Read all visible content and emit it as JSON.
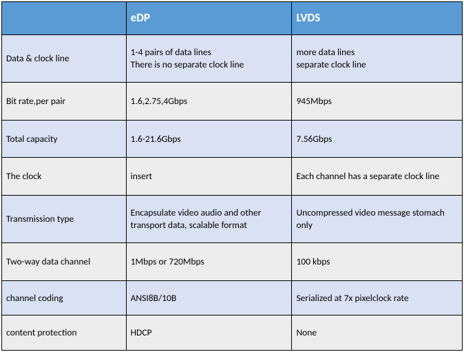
{
  "table": {
    "header_bg": "#5b9bd5",
    "header_fg": "#ffffff",
    "band_even_bg": "#d9e1f2",
    "band_odd_bg": "#ededed",
    "border_color": "#000000",
    "header_fontsize": 17,
    "cell_fontsize": 13.5,
    "columns": [
      "",
      "eDP",
      "LVDS"
    ],
    "column_widths_pct": [
      27,
      36,
      37
    ],
    "rows": [
      {
        "label": "Data & clock line",
        "edp": "1-4 pairs of data lines\nThere is no separate clock line",
        "lvds": "more data lines\nseparate clock line"
      },
      {
        "label": "Bit rate,per pair",
        "edp": "1.6,2.75,4Gbps",
        "lvds": "945Mbps"
      },
      {
        "label": "Total capacity",
        "edp": "1.6-21.6Gbps",
        "lvds": "7.56Gbps"
      },
      {
        "label": "The clock",
        "edp": "insert",
        "lvds": "Each channel has a separate clock line"
      },
      {
        "label": "Transmission type",
        "edp": "Encapsulate video audio and other transport data, scalable format",
        "lvds": "Uncompressed video message stomach only"
      },
      {
        "label": "Two-way data channel",
        "edp": "1Mbps or 720Mbps",
        "lvds": "100 kbps"
      },
      {
        "label": "channel coding",
        "edp": "ANSI8B/10B",
        "lvds": "Serialized at 7x pixelclock rate"
      },
      {
        "label": "content protection",
        "edp": "HDCP",
        "lvds": "None"
      }
    ]
  }
}
